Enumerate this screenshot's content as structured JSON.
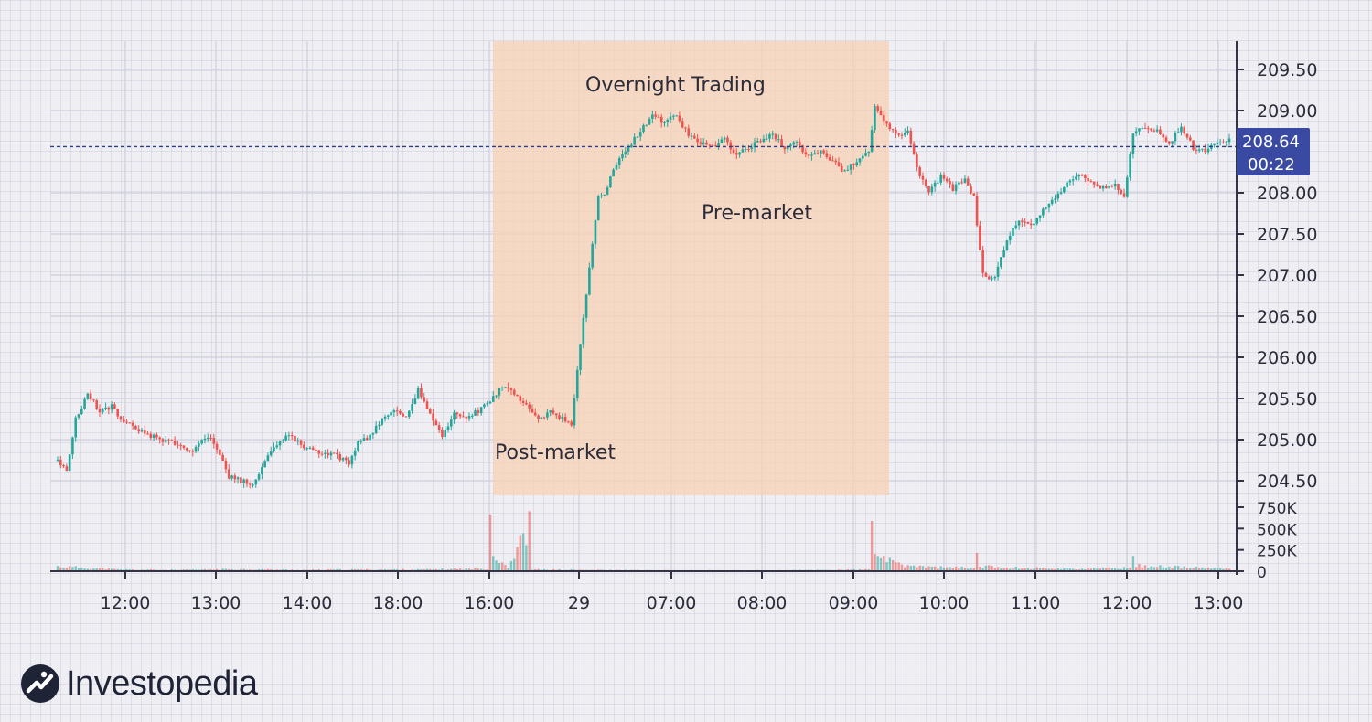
{
  "chart_data": {
    "type": "candlestick",
    "last_price_label": "208.64",
    "countdown_label": "00:22",
    "last_price": 208.64,
    "y_ticks": [
      "209.50",
      "209.00",
      "208.00",
      "207.50",
      "207.00",
      "206.50",
      "206.00",
      "205.50",
      "205.00",
      "204.50"
    ],
    "y_tick_values": [
      209.5,
      209.0,
      208.0,
      207.5,
      207.0,
      206.5,
      206.0,
      205.5,
      205.0,
      204.5
    ],
    "x_ticks": [
      "12:00",
      "13:00",
      "14:00",
      "18:00",
      "16:00",
      "29",
      "07:00",
      "08:00",
      "09:00",
      "10:00",
      "11:00",
      "12:00",
      "13:00"
    ],
    "volume_ticks": [
      "750K",
      "500K",
      "250K",
      "0"
    ],
    "volume_tick_values": [
      750000,
      500000,
      250000,
      0
    ],
    "annotations": {
      "overnight": "Overnight Trading",
      "premarket": "Pre-market",
      "postmarket": "Post-market"
    },
    "price_path": [
      [
        0,
        204.75
      ],
      [
        3,
        204.6
      ],
      [
        6,
        205.25
      ],
      [
        10,
        205.55
      ],
      [
        14,
        205.35
      ],
      [
        18,
        205.4
      ],
      [
        22,
        205.2
      ],
      [
        26,
        205.15
      ],
      [
        30,
        205.05
      ],
      [
        35,
        205.0
      ],
      [
        40,
        204.95
      ],
      [
        45,
        204.85
      ],
      [
        50,
        205.05
      ],
      [
        53,
        204.9
      ],
      [
        57,
        204.55
      ],
      [
        61,
        204.5
      ],
      [
        65,
        204.45
      ],
      [
        69,
        204.75
      ],
      [
        73,
        204.95
      ],
      [
        77,
        205.05
      ],
      [
        81,
        204.95
      ],
      [
        85,
        204.85
      ],
      [
        89,
        204.85
      ],
      [
        93,
        204.8
      ],
      [
        97,
        204.7
      ],
      [
        100,
        204.95
      ],
      [
        104,
        205.05
      ],
      [
        108,
        205.25
      ],
      [
        112,
        205.35
      ],
      [
        116,
        205.3
      ],
      [
        120,
        205.6
      ],
      [
        124,
        205.3
      ],
      [
        128,
        205.05
      ],
      [
        132,
        205.3
      ],
      [
        136,
        205.25
      ],
      [
        140,
        205.35
      ],
      [
        144,
        205.45
      ],
      [
        148,
        205.65
      ],
      [
        152,
        205.55
      ],
      [
        156,
        205.4
      ],
      [
        160,
        205.25
      ],
      [
        164,
        205.35
      ],
      [
        168,
        205.25
      ],
      [
        171,
        205.2
      ],
      [
        178,
        207.4
      ],
      [
        180,
        207.95
      ],
      [
        182,
        208.0
      ],
      [
        186,
        208.35
      ],
      [
        190,
        208.55
      ],
      [
        194,
        208.75
      ],
      [
        198,
        208.95
      ],
      [
        202,
        208.85
      ],
      [
        206,
        208.95
      ],
      [
        210,
        208.7
      ],
      [
        214,
        208.6
      ],
      [
        218,
        208.55
      ],
      [
        222,
        208.65
      ],
      [
        226,
        208.45
      ],
      [
        230,
        208.55
      ],
      [
        234,
        208.65
      ],
      [
        238,
        208.7
      ],
      [
        242,
        208.55
      ],
      [
        246,
        208.6
      ],
      [
        250,
        208.45
      ],
      [
        254,
        208.5
      ],
      [
        258,
        208.4
      ],
      [
        262,
        208.25
      ],
      [
        266,
        208.4
      ],
      [
        270,
        208.5
      ],
      [
        272,
        209.05
      ],
      [
        275,
        208.85
      ],
      [
        279,
        208.7
      ],
      [
        283,
        208.75
      ],
      [
        286,
        208.3
      ],
      [
        290,
        208.0
      ],
      [
        294,
        208.2
      ],
      [
        298,
        208.05
      ],
      [
        302,
        208.15
      ],
      [
        305,
        207.95
      ],
      [
        308,
        207.0
      ],
      [
        312,
        206.95
      ],
      [
        316,
        207.45
      ],
      [
        320,
        207.65
      ],
      [
        324,
        207.6
      ],
      [
        328,
        207.8
      ],
      [
        332,
        207.95
      ],
      [
        336,
        208.1
      ],
      [
        340,
        208.2
      ],
      [
        344,
        208.15
      ],
      [
        348,
        208.05
      ],
      [
        352,
        208.1
      ],
      [
        355,
        207.95
      ],
      [
        358,
        208.75
      ],
      [
        362,
        208.8
      ],
      [
        366,
        208.75
      ],
      [
        370,
        208.6
      ],
      [
        374,
        208.8
      ],
      [
        378,
        208.55
      ],
      [
        382,
        208.5
      ],
      [
        386,
        208.6
      ],
      [
        390,
        208.64
      ]
    ],
    "volume_path": [
      [
        0,
        60000
      ],
      [
        20,
        20000
      ],
      [
        40,
        15000
      ],
      [
        60,
        25000
      ],
      [
        80,
        15000
      ],
      [
        100,
        20000
      ],
      [
        120,
        20000
      ],
      [
        143,
        30000
      ],
      [
        144,
        780000
      ],
      [
        145,
        200000
      ],
      [
        150,
        50000
      ],
      [
        157,
        560000
      ],
      [
        158,
        20000
      ],
      [
        175,
        15000
      ],
      [
        200,
        10000
      ],
      [
        240,
        10000
      ],
      [
        270,
        20000
      ],
      [
        271,
        560000
      ],
      [
        272,
        250000
      ],
      [
        275,
        150000
      ],
      [
        280,
        80000
      ],
      [
        290,
        50000
      ],
      [
        305,
        40000
      ],
      [
        306,
        220000
      ],
      [
        307,
        60000
      ],
      [
        320,
        40000
      ],
      [
        340,
        30000
      ],
      [
        357,
        40000
      ],
      [
        358,
        210000
      ],
      [
        359,
        70000
      ],
      [
        380,
        40000
      ],
      [
        390,
        30000
      ]
    ],
    "grid": true,
    "shaded_region": "overnight-session"
  },
  "logo": {
    "text": "Investopedia",
    "icon": "investopedia-logo-icon"
  },
  "colors": {
    "up": "#26a69a",
    "down": "#ef5350",
    "shade": "#f8d2b4",
    "badge": "#3a4aa3",
    "price_line": "#2c3e8c",
    "axis": "#333344"
  }
}
